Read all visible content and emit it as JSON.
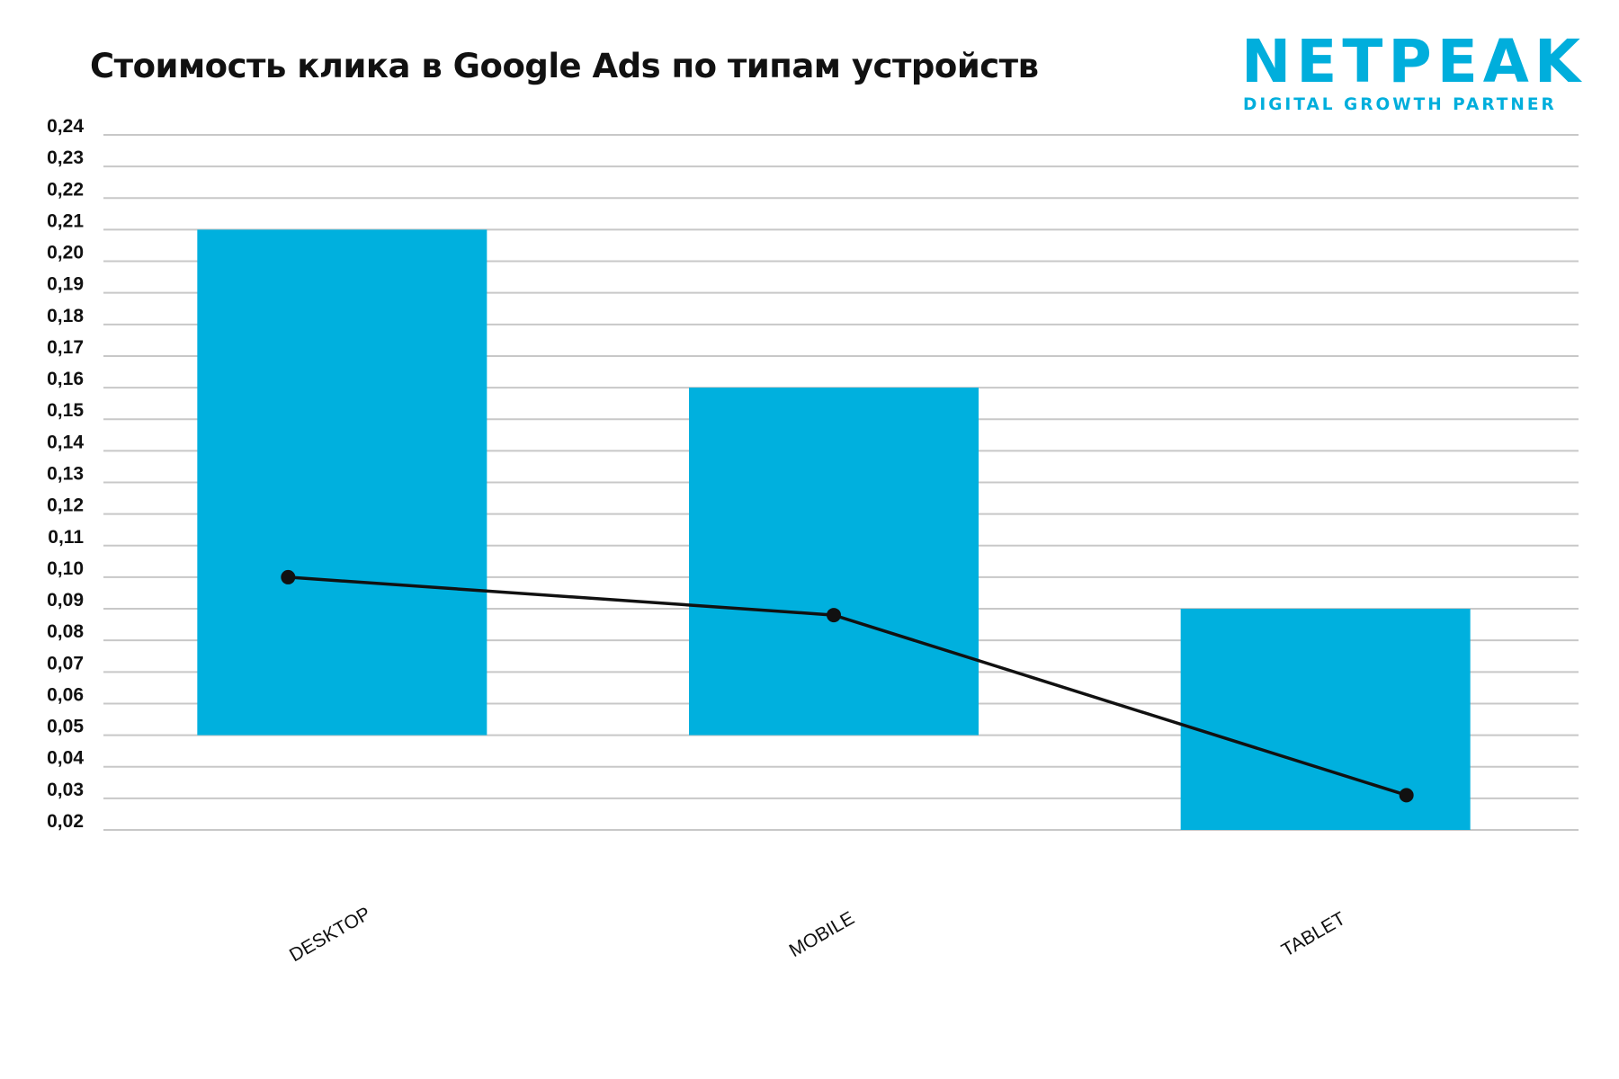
{
  "title": "Стоимость клика в Google Ads по типам устройств",
  "logo": {
    "wordmark": "NETPEAK",
    "tagline": "DIGITAL GROWTH PARTNER",
    "color": "#00aedc"
  },
  "chart_data": {
    "type": "bar",
    "categories": [
      "DESKTOP",
      "MOBILE",
      "TABLET"
    ],
    "bars": [
      {
        "low": 0.05,
        "high": 0.21
      },
      {
        "low": 0.05,
        "high": 0.16
      },
      {
        "low": 0.02,
        "high": 0.09
      }
    ],
    "line_values": [
      0.1,
      0.088,
      0.031
    ],
    "ylim": [
      0.02,
      0.24
    ],
    "yticks": [
      "0,24",
      "0,23",
      "0,22",
      "0,21",
      "0,20",
      "0,19",
      "0,18",
      "0,17",
      "0,16",
      "0,15",
      "0,14",
      "0,13",
      "0,12",
      "0,11",
      "0,10",
      "0,09",
      "0,08",
      "0,07",
      "0,06",
      "0,05",
      "0,04",
      "0,03",
      "0,02"
    ],
    "grid": true,
    "bar_color": "#00b0de",
    "line_color": "#111111",
    "grid_color": "#c8c8c8"
  }
}
